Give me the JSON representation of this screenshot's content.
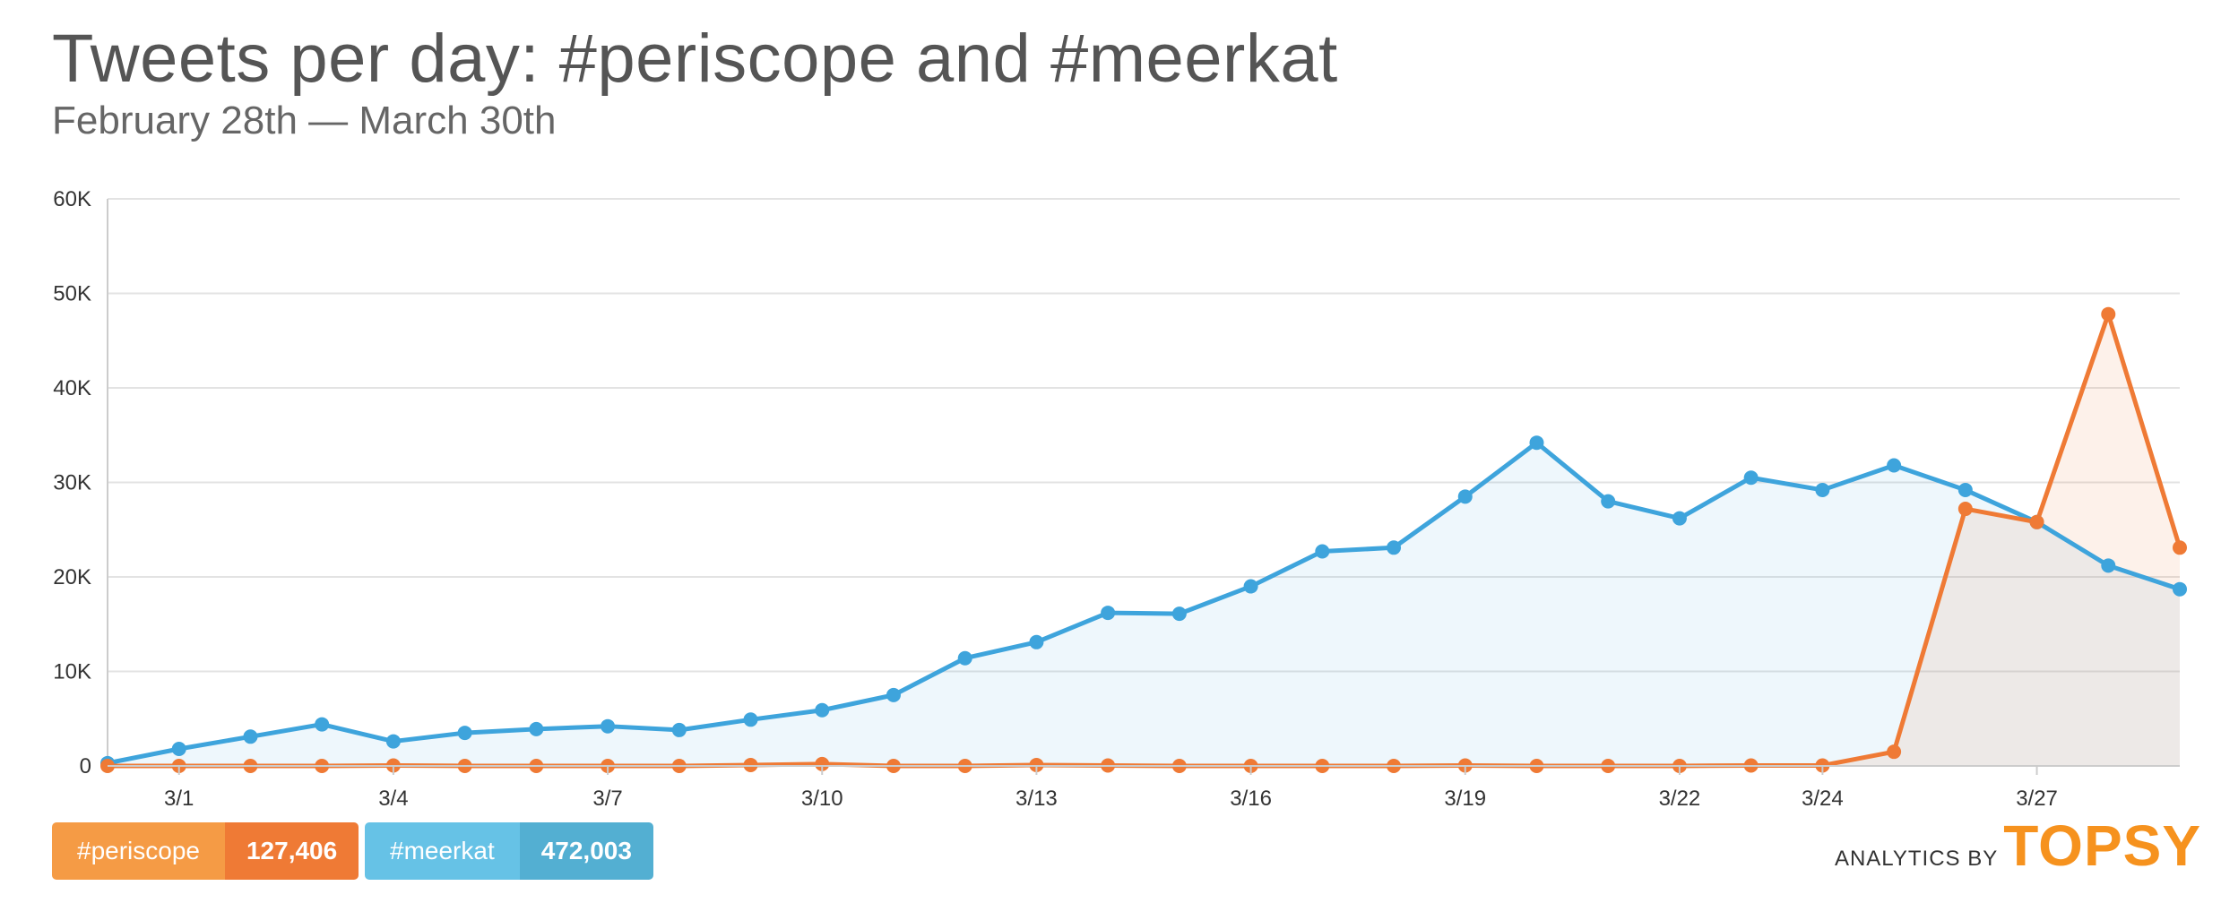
{
  "header": {
    "title": "Tweets per day: #periscope and #meerkat",
    "subtitle": "February 28th — March 30th"
  },
  "legend": {
    "periscope": {
      "label": "#periscope",
      "total": "127,406",
      "color": "#ef7a35"
    },
    "meerkat": {
      "label": "#meerkat",
      "total": "472,003",
      "color": "#3ea4dc"
    }
  },
  "branding": {
    "prefix": "ANALYTICS BY",
    "logo": "TOPSY",
    "logo_color": "#f6921e"
  },
  "chart_data": {
    "type": "line",
    "title": "Tweets per day: #periscope and #meerkat",
    "subtitle": "February 28th — March 30th",
    "xlabel": "",
    "ylabel": "",
    "ylim": [
      0,
      60000
    ],
    "y_ticks": [
      0,
      10000,
      20000,
      30000,
      40000,
      50000,
      60000
    ],
    "y_tick_labels": [
      "0",
      "10K",
      "20K",
      "30K",
      "40K",
      "50K",
      "60K"
    ],
    "x": [
      "2/28",
      "3/1",
      "3/2",
      "3/3",
      "3/4",
      "3/5",
      "3/6",
      "3/7",
      "3/8",
      "3/9",
      "3/10",
      "3/11",
      "3/12",
      "3/13",
      "3/14",
      "3/15",
      "3/16",
      "3/17",
      "3/18",
      "3/19",
      "3/20",
      "3/21",
      "3/22",
      "3/23",
      "3/24",
      "3/25",
      "3/26",
      "3/27",
      "3/28",
      "3/29"
    ],
    "x_tick_labels": [
      "3/1",
      "3/4",
      "3/7",
      "3/10",
      "3/13",
      "3/16",
      "3/19",
      "3/22",
      "3/24",
      "3/27"
    ],
    "grid": true,
    "legend_position": "bottom-left",
    "series": [
      {
        "name": "#meerkat",
        "color": "#3ea4dc",
        "values": [
          300,
          1800,
          3100,
          4400,
          2600,
          3500,
          3900,
          4200,
          3800,
          4900,
          5900,
          7500,
          11400,
          13100,
          16200,
          16100,
          19000,
          22700,
          23100,
          28500,
          34200,
          28000,
          26200,
          30500,
          29200,
          31800,
          29200,
          25800,
          21200,
          18700
        ]
      },
      {
        "name": "#periscope",
        "color": "#ef7a35",
        "values": [
          0,
          0,
          0,
          0,
          50,
          0,
          0,
          0,
          0,
          100,
          200,
          0,
          0,
          100,
          50,
          0,
          0,
          0,
          0,
          50,
          0,
          0,
          0,
          50,
          50,
          1500,
          27200,
          25800,
          47800,
          23100
        ]
      }
    ]
  }
}
